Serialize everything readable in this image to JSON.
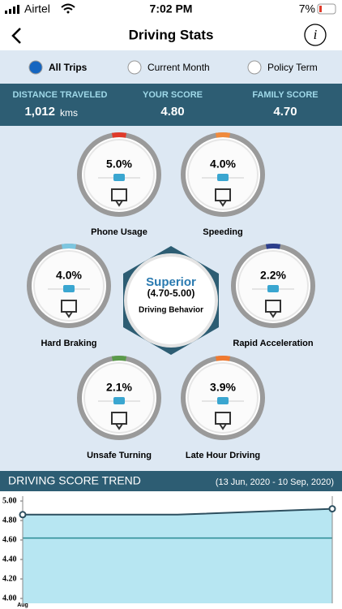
{
  "status": {
    "carrier": "Airtel",
    "time": "7:02 PM",
    "battery": "7%"
  },
  "header": {
    "title": "Driving Stats",
    "info": "i"
  },
  "tabs": {
    "items": [
      "All Trips",
      "Current Month",
      "Policy Term"
    ],
    "selected": 0
  },
  "summary": [
    {
      "label": "DISTANCE TRAVELED",
      "value": "1,012",
      "unit": "kms"
    },
    {
      "label": "YOUR SCORE",
      "value": "4.80"
    },
    {
      "label": "FAMILY SCORE",
      "value": "4.70"
    }
  ],
  "metrics": [
    {
      "value": "5.0%",
      "name": "Phone Usage",
      "color": "#e03a2a"
    },
    {
      "value": "4.0%",
      "name": "Speeding",
      "color": "#f08a3c"
    },
    {
      "value": "4.0%",
      "name": "Hard Braking",
      "color": "#7cc6e0"
    },
    {
      "value": "2.2%",
      "name": "Rapid Acceleration",
      "color": "#2c3e8c"
    },
    {
      "value": "2.1%",
      "name": "Unsafe Turning",
      "color": "#5a9a4a"
    },
    {
      "value": "3.9%",
      "name": "Late Hour Driving",
      "color": "#f07a30"
    }
  ],
  "behavior": {
    "rating": "Superior",
    "range": "(4.70-5.00)",
    "label": "Driving Behavior"
  },
  "trend": {
    "type": "line",
    "title": "DRIVING SCORE TREND",
    "period": "(13 Jun, 2020 - 10 Sep, 2020)",
    "categories": [
      "Aug",
      null,
      null
    ],
    "values": [
      4.86,
      4.86,
      4.92
    ],
    "reference": 4.62,
    "ylim": [
      3.95,
      5.05
    ],
    "yticks": [
      {
        "value": 5,
        "label": "5.00"
      },
      {
        "value": 4.8,
        "label": "4.80"
      },
      {
        "value": 4.6,
        "label": "4.60"
      },
      {
        "value": 4.4,
        "label": "4.40"
      },
      {
        "value": 4.2,
        "label": "4.20"
      },
      {
        "value": 4,
        "label": "4.00"
      }
    ],
    "line_color": "#2d4f5f",
    "fill_color": "#b7e6f2",
    "reference_color": "#2a8a94"
  }
}
